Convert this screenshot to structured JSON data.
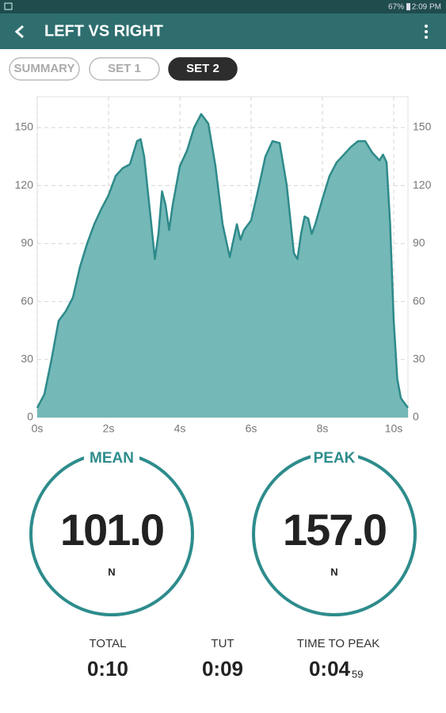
{
  "status_bar": {
    "battery": "67%",
    "time": "2:09 PM"
  },
  "app_bar": {
    "title": "LEFT VS RIGHT"
  },
  "tabs": [
    {
      "label": "SUMMARY",
      "selected": false
    },
    {
      "label": "SET 1",
      "selected": false
    },
    {
      "label": "SET 2",
      "selected": true
    }
  ],
  "chart_data": {
    "type": "area",
    "color": "#74b8b7",
    "line_color": "#2e8a8a",
    "grid": true,
    "x": [
      0,
      0.2,
      0.4,
      0.6,
      0.8,
      1.0,
      1.2,
      1.4,
      1.6,
      1.8,
      2.0,
      2.2,
      2.4,
      2.6,
      2.8,
      2.9,
      3.0,
      3.2,
      3.3,
      3.4,
      3.5,
      3.6,
      3.7,
      3.8,
      4.0,
      4.2,
      4.4,
      4.6,
      4.8,
      5.0,
      5.2,
      5.4,
      5.6,
      5.7,
      5.8,
      6.0,
      6.2,
      6.4,
      6.6,
      6.8,
      7.0,
      7.2,
      7.3,
      7.4,
      7.5,
      7.6,
      7.7,
      7.8,
      8.0,
      8.2,
      8.4,
      8.6,
      8.8,
      9.0,
      9.2,
      9.4,
      9.6,
      9.7,
      9.8,
      9.9,
      10.0,
      10.1,
      10.2,
      10.4
    ],
    "values": [
      5,
      12,
      30,
      50,
      55,
      62,
      78,
      90,
      100,
      108,
      115,
      125,
      129,
      131,
      143,
      144,
      135,
      100,
      82,
      95,
      117,
      110,
      97,
      110,
      130,
      138,
      150,
      157,
      152,
      130,
      100,
      83,
      100,
      92,
      97,
      102,
      118,
      135,
      143,
      142,
      120,
      85,
      82,
      95,
      104,
      103,
      95,
      100,
      113,
      125,
      132,
      136,
      140,
      143,
      143,
      137,
      133,
      136,
      132,
      100,
      50,
      20,
      10,
      5
    ],
    "xlim": [
      0,
      10.4
    ],
    "ylim": [
      0,
      166
    ],
    "xticks": [
      {
        "value": 0,
        "label": "0s"
      },
      {
        "value": 2,
        "label": "2s"
      },
      {
        "value": 4,
        "label": "4s"
      },
      {
        "value": 6,
        "label": "6s"
      },
      {
        "value": 8,
        "label": "8s"
      },
      {
        "value": 10,
        "label": "10s"
      }
    ],
    "yticks": [
      0,
      30,
      60,
      90,
      120,
      150
    ]
  },
  "stats": {
    "mean": {
      "label": "MEAN",
      "value": "101.0",
      "unit": "N"
    },
    "peak": {
      "label": "PEAK",
      "value": "157.0",
      "unit": "N"
    }
  },
  "summary": [
    {
      "label": "TOTAL",
      "value": "0:10"
    },
    {
      "label": "TUT",
      "value": "0:09"
    },
    {
      "label": "TIME TO PEAK",
      "value": "0:04",
      "sub": "59"
    }
  ]
}
